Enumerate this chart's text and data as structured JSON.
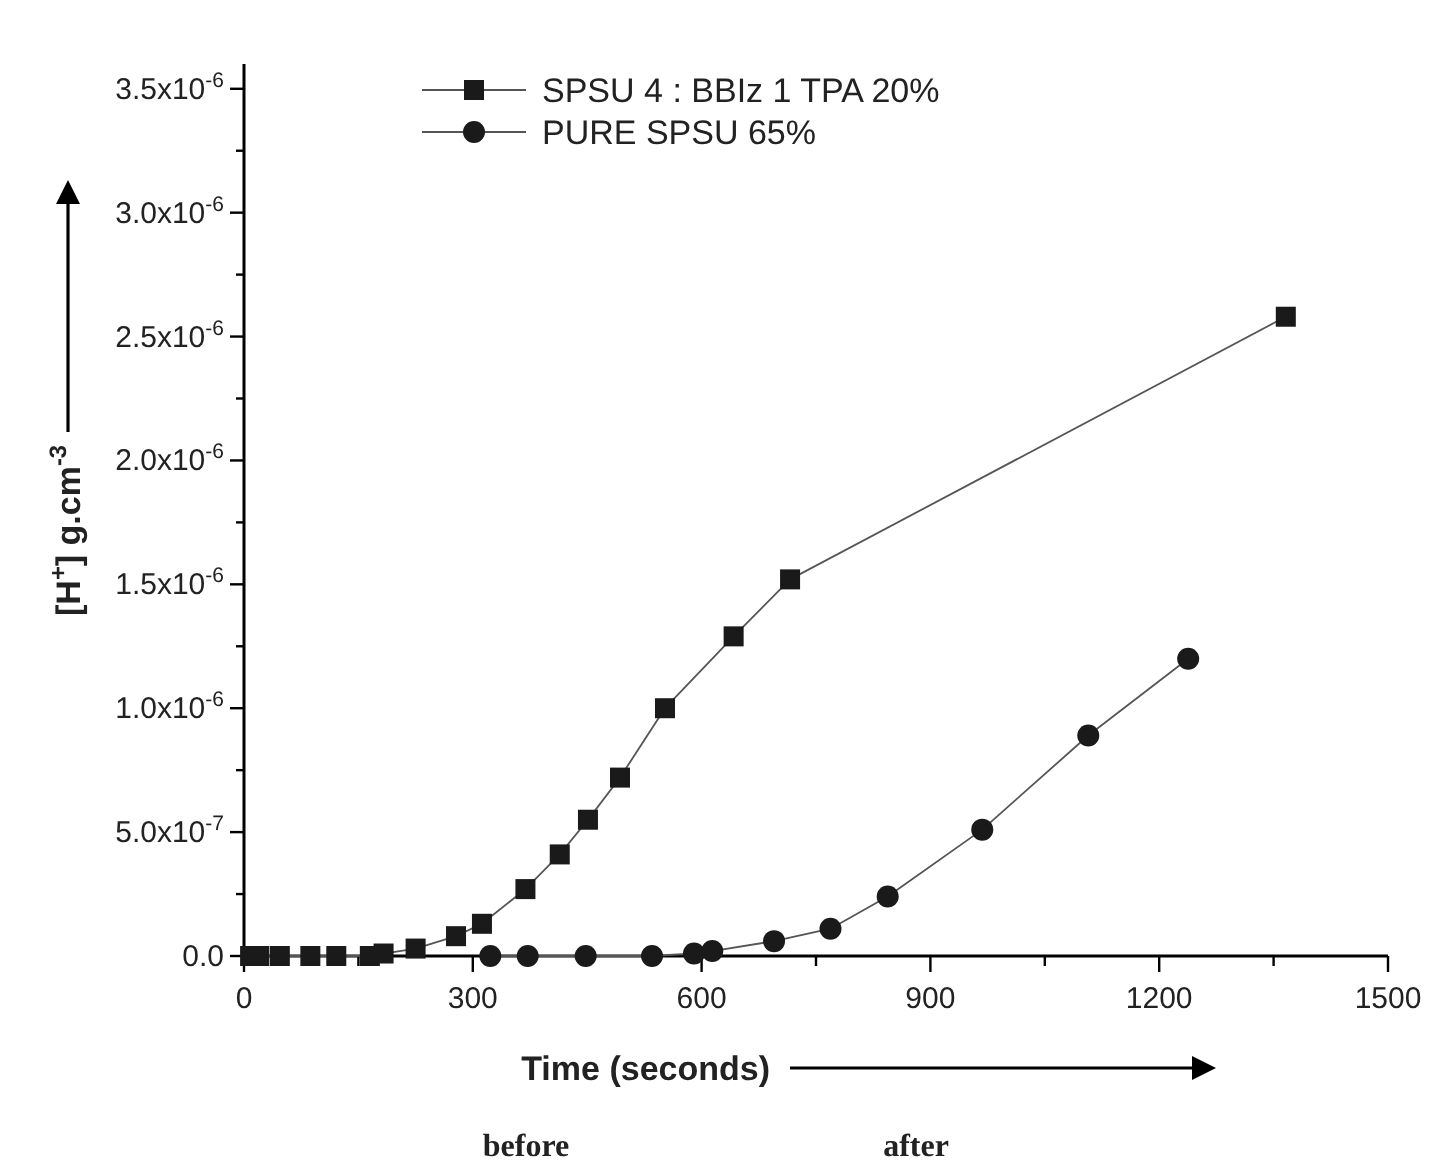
{
  "chart_data": {
    "type": "line",
    "xlabel": "Time (seconds)",
    "ylabel": "[H$^{+}$] g.cm$^{-3}$",
    "xlim": [
      0,
      1500
    ],
    "ylim": [
      0,
      3.6e-06
    ],
    "xticks": [
      0,
      {
        "value": 150,
        "label": null
      },
      300,
      {
        "value": 450,
        "label": null
      },
      600,
      {
        "value": 750,
        "label": null
      },
      900,
      {
        "value": 1050,
        "label": null
      },
      1200,
      {
        "value": 1350,
        "label": null
      },
      1500
    ],
    "yticks": [
      {
        "value": 0,
        "label": "0.0"
      },
      {
        "value": 2.5e-07,
        "label": null
      },
      {
        "value": 5e-07,
        "label": "5.0x10$^{-7}$"
      },
      {
        "value": 7.5e-07,
        "label": null
      },
      {
        "value": 1e-06,
        "label": "1.0x10$^{-6}$"
      },
      {
        "value": 1.25e-06,
        "label": null
      },
      {
        "value": 1.5e-06,
        "label": "1.5x10$^{-6}$"
      },
      {
        "value": 1.75e-06,
        "label": null
      },
      {
        "value": 2e-06,
        "label": "2.0x10$^{-6}$"
      },
      {
        "value": 2.25e-06,
        "label": null
      },
      {
        "value": 2.5e-06,
        "label": "2.5x10$^{-6}$"
      },
      {
        "value": 2.75e-06,
        "label": null
      },
      {
        "value": 3e-06,
        "label": "3.0x10$^{-6}$"
      },
      {
        "value": 3.25e-06,
        "label": null
      },
      {
        "value": 3.5e-06,
        "label": "3.5x10$^{-6}$"
      }
    ],
    "legend": "top",
    "grid": false,
    "line_style": "solid",
    "series": [
      {
        "name": "SPSU 4 : BBIz 1 TPA 20%",
        "color": "#1a1a1a",
        "marker": "square",
        "x": [
          8,
          20,
          47,
          87,
          121,
          165,
          183,
          225,
          278,
          312,
          369,
          414,
          451,
          493,
          552,
          642,
          716,
          1366
        ],
        "values": [
          0,
          0,
          0,
          0,
          0,
          0,
          1e-08,
          3e-08,
          8e-08,
          1.3e-07,
          2.7e-07,
          4.1e-07,
          5.5e-07,
          7.2e-07,
          1e-06,
          1.29e-06,
          1.52e-06,
          2.58e-06
        ]
      },
      {
        "name": "PURE SPSU 65%",
        "color": "#1a1a1a",
        "marker": "circle",
        "x": [
          323,
          372,
          448,
          535,
          590,
          614,
          695,
          769,
          844,
          968,
          1107,
          1238
        ],
        "values": [
          0,
          0,
          0,
          0,
          1e-08,
          2e-08,
          6e-08,
          1.1e-07,
          2.4e-07,
          5.1e-07,
          8.9e-07,
          1.2e-06
        ]
      }
    ],
    "annotations": [
      "before",
      "after"
    ]
  }
}
